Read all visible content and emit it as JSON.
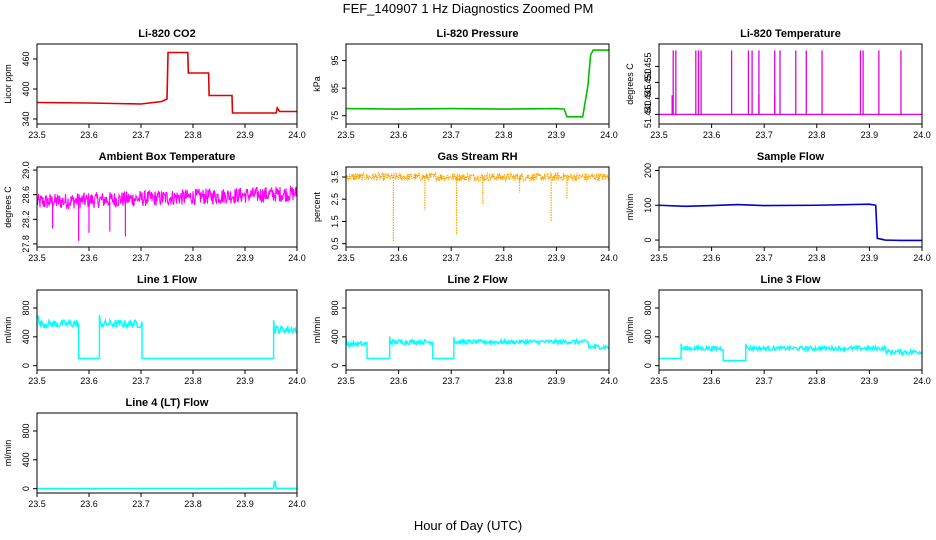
{
  "figure": {
    "title": "FEF_140907  1 Hz Diagnostics Zoomed PM",
    "footer_xlabel": "Hour of Day (UTC)"
  },
  "chart_data": [
    {
      "type": "line",
      "title": "Li-820 CO2",
      "ylabel": "Licor ppm",
      "color": "#e00000",
      "xlim": [
        23.5,
        24.0
      ],
      "ylim": [
        330,
        490
      ],
      "xticks": [
        "23.5",
        "23.6",
        "23.7",
        "23.8",
        "23.9",
        "24.0"
      ],
      "yticks": [
        "340",
        "400",
        "460"
      ],
      "series": [
        {
          "x": [
            23.5,
            23.6,
            23.7,
            23.74,
            23.75,
            23.752,
            23.79,
            23.791,
            23.83,
            23.831,
            23.875,
            23.876,
            23.96,
            23.962,
            23.966,
            23.967,
            24.0
          ],
          "y": [
            373,
            372,
            370,
            375,
            380,
            473,
            473,
            432,
            432,
            387,
            387,
            352,
            352,
            362,
            356,
            355,
            355
          ]
        }
      ]
    },
    {
      "type": "line",
      "title": "Li-820 Pressure",
      "ylabel": "kPa",
      "color": "#00c000",
      "xlim": [
        23.5,
        24.0
      ],
      "ylim": [
        72,
        101
      ],
      "xticks": [
        "23.5",
        "23.6",
        "23.7",
        "23.8",
        "23.9",
        "24.0"
      ],
      "yticks": [
        "75",
        "85",
        "95"
      ],
      "series": [
        {
          "x": [
            23.5,
            23.6,
            23.7,
            23.8,
            23.9,
            23.915,
            23.92,
            23.95,
            23.96,
            23.965,
            23.97,
            24.0
          ],
          "y": [
            77.6,
            77.4,
            77.6,
            77.4,
            77.6,
            77.4,
            74.6,
            74.6,
            86,
            97,
            98.8,
            98.8
          ]
        }
      ]
    },
    {
      "type": "line",
      "title": "Li-820 Temperature",
      "ylabel": "degrees C",
      "color": "#e000e0",
      "xlim": [
        23.5,
        24.0
      ],
      "ylim": [
        51.437,
        51.462
      ],
      "xticks": [
        "23.5",
        "23.6",
        "23.7",
        "23.8",
        "23.9",
        "24.0"
      ],
      "yticks": [
        "51.440",
        "51.445",
        "51.450",
        "51.455"
      ],
      "baseline": 51.44,
      "peak": 51.46,
      "spikes": [
        23.527,
        23.532,
        23.57,
        23.575,
        23.58,
        23.638,
        23.67,
        23.677,
        23.69,
        23.72,
        23.73,
        23.76,
        23.78,
        23.81,
        23.883,
        23.888,
        23.918,
        23.96
      ],
      "small_spikes": [
        23.525,
        23.69,
        23.72
      ]
    },
    {
      "type": "line",
      "title": "Ambient Box Temperature",
      "ylabel": "degrees C",
      "color": "#ff00ff",
      "noisy": true,
      "xlim": [
        23.5,
        24.0
      ],
      "ylim": [
        27.75,
        29.05
      ],
      "xticks": [
        "23.5",
        "23.6",
        "23.7",
        "23.8",
        "23.9",
        "24.0"
      ],
      "yticks": [
        "27.8",
        "28.2",
        "28.6",
        "29.0"
      ],
      "band_start": [
        23.5,
        28.48
      ],
      "band_end": [
        24.0,
        28.62
      ],
      "band_halfwidth": 0.13,
      "dips": [
        [
          23.53,
          28.05
        ],
        [
          23.58,
          27.85
        ],
        [
          23.6,
          27.98
        ],
        [
          23.64,
          28.0
        ],
        [
          23.67,
          27.92
        ]
      ]
    },
    {
      "type": "line",
      "title": "Gas Stream RH",
      "ylabel": "percent",
      "color": "#ffa500",
      "noisy": true,
      "dotted": true,
      "xlim": [
        23.5,
        24.0
      ],
      "ylim": [
        0.35,
        3.95
      ],
      "xticks": [
        "23.5",
        "23.6",
        "23.7",
        "23.8",
        "23.9",
        "24.0"
      ],
      "yticks": [
        "0.5",
        "1.5",
        "2.5",
        "3.5"
      ],
      "band_start": [
        23.5,
        3.5
      ],
      "band_end": [
        24.0,
        3.5
      ],
      "band_halfwidth": 0.18,
      "dips": [
        [
          23.59,
          0.55
        ],
        [
          23.65,
          2.0
        ],
        [
          23.71,
          0.9
        ],
        [
          23.76,
          2.3
        ],
        [
          23.83,
          2.8
        ],
        [
          23.89,
          1.5
        ],
        [
          23.92,
          2.5
        ]
      ]
    },
    {
      "type": "line",
      "title": "Sample Flow",
      "ylabel": "ml/min",
      "color": "#0000d0",
      "xlim": [
        23.5,
        24.0
      ],
      "ylim": [
        -20,
        210
      ],
      "xticks": [
        "23.5",
        "23.6",
        "23.7",
        "23.8",
        "23.9",
        "24.0"
      ],
      "yticks": [
        "0",
        "100",
        "200"
      ],
      "series": [
        {
          "x": [
            23.5,
            23.55,
            23.6,
            23.65,
            23.7,
            23.8,
            23.9,
            23.912,
            23.915,
            23.93,
            23.96,
            24.0
          ],
          "y": [
            100,
            97,
            99,
            102,
            99,
            100,
            103,
            100,
            5,
            0,
            -1,
            -1
          ]
        }
      ]
    },
    {
      "type": "line",
      "title": "Line 1 Flow",
      "ylabel": "ml/min",
      "color": "#00ffff",
      "noisy": true,
      "xlim": [
        23.5,
        24.0
      ],
      "ylim": [
        -60,
        1050
      ],
      "xticks": [
        "23.5",
        "23.6",
        "23.7",
        "23.8",
        "23.9",
        "24.0"
      ],
      "yticks": [
        "0",
        "400",
        "800"
      ],
      "segments": [
        [
          23.502,
          23.58,
          580,
          55
        ],
        [
          23.58,
          23.62,
          100,
          0
        ],
        [
          23.62,
          23.702,
          580,
          55
        ],
        [
          23.702,
          23.955,
          100,
          0
        ],
        [
          23.955,
          23.998,
          500,
          60
        ]
      ]
    },
    {
      "type": "line",
      "title": "Line 2 Flow",
      "ylabel": "ml/min",
      "color": "#00ffff",
      "noisy": true,
      "xlim": [
        23.5,
        24.0
      ],
      "ylim": [
        -60,
        1050
      ],
      "xticks": [
        "23.5",
        "23.6",
        "23.7",
        "23.8",
        "23.9",
        "24.0"
      ],
      "yticks": [
        "0",
        "400",
        "800"
      ],
      "segments": [
        [
          23.5,
          23.54,
          300,
          35
        ],
        [
          23.54,
          23.583,
          100,
          0
        ],
        [
          23.583,
          23.665,
          330,
          35
        ],
        [
          23.665,
          23.705,
          100,
          0
        ],
        [
          23.705,
          23.96,
          330,
          30
        ],
        [
          23.96,
          24.0,
          260,
          35
        ]
      ]
    },
    {
      "type": "line",
      "title": "Line 3 Flow",
      "ylabel": "ml/min",
      "color": "#00ffff",
      "noisy": true,
      "xlim": [
        23.5,
        24.0
      ],
      "ylim": [
        -60,
        1050
      ],
      "xticks": [
        "23.5",
        "23.6",
        "23.7",
        "23.8",
        "23.9",
        "24.0"
      ],
      "yticks": [
        "0",
        "400",
        "800"
      ],
      "segments": [
        [
          23.5,
          23.542,
          100,
          0
        ],
        [
          23.542,
          23.622,
          240,
          30
        ],
        [
          23.622,
          23.665,
          70,
          0
        ],
        [
          23.665,
          23.93,
          240,
          30
        ],
        [
          23.93,
          24.0,
          190,
          35
        ]
      ]
    },
    {
      "type": "line",
      "title": "Line 4 (LT) Flow",
      "ylabel": "ml/min",
      "color": "#00ffff",
      "xlim": [
        23.5,
        24.0
      ],
      "ylim": [
        -60,
        1050
      ],
      "xticks": [
        "23.5",
        "23.6",
        "23.7",
        "23.8",
        "23.9",
        "24.0"
      ],
      "yticks": [
        "0",
        "400",
        "800"
      ],
      "series": [
        {
          "x": [
            23.5,
            23.95,
            23.955,
            23.957,
            23.96,
            24.0
          ],
          "y": [
            2,
            3,
            5,
            110,
            5,
            3
          ]
        }
      ]
    }
  ]
}
